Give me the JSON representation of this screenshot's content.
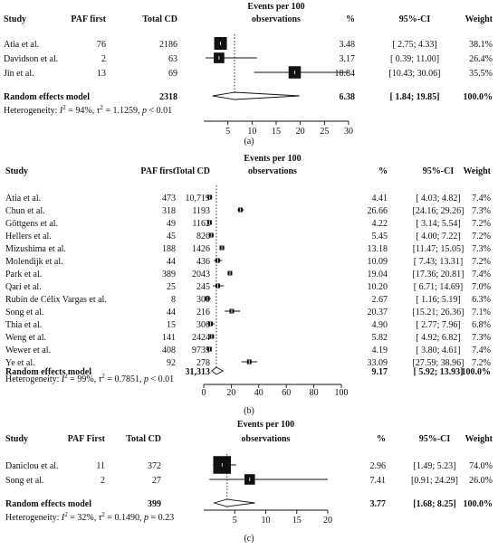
{
  "chart_data": [
    {
      "type": "forest",
      "panel_label": "(a)",
      "headers": {
        "study": "Study",
        "paf": "PAF first",
        "total": "Total CD",
        "events_line1": "Events per 100",
        "events_line2": "observations",
        "pct": "%",
        "ci": "95%-CI",
        "weight": "Weight"
      },
      "studies": [
        {
          "name": "Atia et al.",
          "paf": "76",
          "total": "2186",
          "est": 3.48,
          "lo": 2.75,
          "hi": 4.33,
          "pct": "3.48",
          "ci": "[ 2.75;  4.33]",
          "weight": "38.1%"
        },
        {
          "name": "Davidson et al.",
          "paf": "2",
          "total": "63",
          "est": 3.17,
          "lo": 0.39,
          "hi": 11.0,
          "pct": "3.17",
          "ci": "[ 0.39; 11.00]",
          "weight": "26.4%"
        },
        {
          "name": "Jin et al.",
          "paf": "13",
          "total": "69",
          "est": 18.84,
          "lo": 10.43,
          "hi": 30.06,
          "pct": "18.84",
          "ci": "[10.43; 30.06]",
          "weight": "35.5%"
        }
      ],
      "summary": {
        "name": "Random effects model",
        "total": "2318",
        "est": 6.38,
        "lo": 1.84,
        "hi": 19.85,
        "pct": "6.38",
        "ci": "[ 1.84; 19.85]",
        "weight": "100.0%"
      },
      "heterogeneity": {
        "prefix": "Heterogeneity: ",
        "I2": "94%",
        "tau2": "1.1259",
        "p": "< 0.01",
        "p_op": ""
      },
      "xaxis": {
        "ticks": [
          5,
          10,
          15,
          20,
          25,
          30
        ],
        "range": [
          0,
          30
        ]
      }
    },
    {
      "type": "forest",
      "panel_label": "(b)",
      "headers": {
        "study": "Study",
        "paf": "PAF first",
        "total": "Total CD",
        "events_line1": "Events per 100",
        "events_line2": "observations",
        "pct": "%",
        "ci": "95%-CI",
        "weight": "Weight"
      },
      "studies": [
        {
          "name": "Atia et al.",
          "paf": "473",
          "total": "10,719",
          "est": 4.41,
          "lo": 4.03,
          "hi": 4.82,
          "pct": "4.41",
          "ci": "[ 4.03;  4.82]",
          "weight": "7.4%"
        },
        {
          "name": "Chun et al.",
          "paf": "318",
          "total": "1193",
          "est": 26.66,
          "lo": 24.16,
          "hi": 29.26,
          "pct": "26.66",
          "ci": "[24.16; 29.26]",
          "weight": "7.3%"
        },
        {
          "name": "Göttgens et al.",
          "paf": "49",
          "total": "1162",
          "est": 4.22,
          "lo": 3.14,
          "hi": 5.54,
          "pct": "4.22",
          "ci": "[ 3.14;  5.54]",
          "weight": "7.2%"
        },
        {
          "name": "Hellers et al.",
          "paf": "45",
          "total": "826",
          "est": 5.45,
          "lo": 4.0,
          "hi": 7.22,
          "pct": "5.45",
          "ci": "[ 4.00;  7.22]",
          "weight": "7.2%"
        },
        {
          "name": "Mizushima et al.",
          "paf": "188",
          "total": "1426",
          "est": 13.18,
          "lo": 11.47,
          "hi": 15.05,
          "pct": "13.18",
          "ci": "[11.47; 15.05]",
          "weight": "7.3%"
        },
        {
          "name": "Molendijk et al.",
          "paf": "44",
          "total": "436",
          "est": 10.09,
          "lo": 7.43,
          "hi": 13.31,
          "pct": "10.09",
          "ci": "[ 7.43; 13.31]",
          "weight": "7.2%"
        },
        {
          "name": "Park et al.",
          "paf": "389",
          "total": "2043",
          "est": 19.04,
          "lo": 17.36,
          "hi": 20.81,
          "pct": "19.04",
          "ci": "[17.36; 20.81]",
          "weight": "7.4%"
        },
        {
          "name": "Qari et al.",
          "paf": "25",
          "total": "245",
          "est": 10.2,
          "lo": 6.71,
          "hi": 14.69,
          "pct": "10.20",
          "ci": "[ 6.71; 14.69]",
          "weight": "7.0%"
        },
        {
          "name": "Rubín de Célix Vargas et al.",
          "paf": "8",
          "total": "300",
          "est": 2.67,
          "lo": 1.16,
          "hi": 5.19,
          "pct": "2.67",
          "ci": "[ 1.16;  5.19]",
          "weight": "6.3%"
        },
        {
          "name": "Song et al.",
          "paf": "44",
          "total": "216",
          "est": 20.37,
          "lo": 15.21,
          "hi": 26.36,
          "pct": "20.37",
          "ci": "[15.21; 26.36]",
          "weight": "7.1%"
        },
        {
          "name": "Thia et al.",
          "paf": "15",
          "total": "306",
          "est": 4.9,
          "lo": 2.77,
          "hi": 7.96,
          "pct": "4.90",
          "ci": "[ 2.77;  7.96]",
          "weight": "6.8%"
        },
        {
          "name": "Weng et al.",
          "paf": "141",
          "total": "2424",
          "est": 5.82,
          "lo": 4.92,
          "hi": 6.82,
          "pct": "5.82",
          "ci": "[ 4.92;  6.82]",
          "weight": "7.3%"
        },
        {
          "name": "Wewer et al.",
          "paf": "408",
          "total": "9739",
          "est": 4.19,
          "lo": 3.8,
          "hi": 4.61,
          "pct": "4.19",
          "ci": "[ 3.80;  4.61]",
          "weight": "7.4%"
        },
        {
          "name": "Ye et al.",
          "paf": "92",
          "total": "278",
          "est": 33.09,
          "lo": 27.59,
          "hi": 38.96,
          "pct": "33.09",
          "ci": "[27.59; 38.96]",
          "weight": "7.2%"
        }
      ],
      "summary": {
        "name": "Random effects model",
        "total": "31,313",
        "est": 9.17,
        "lo": 5.92,
        "hi": 13.93,
        "pct": "9.17",
        "ci": "[ 5.92; 13.93]",
        "weight": "100.0%"
      },
      "heterogeneity": {
        "prefix": "Heterogeneity: ",
        "I2": "99%",
        "tau2": "0.7851",
        "p": "< 0.01",
        "p_op": ""
      },
      "xaxis": {
        "ticks": [
          0,
          20,
          40,
          60,
          80,
          100
        ],
        "range": [
          0,
          100
        ]
      }
    },
    {
      "type": "forest",
      "panel_label": "(c)",
      "headers": {
        "study": "Study",
        "paf": "PAF First",
        "total": "Total CD",
        "events_line1": "Events per 100",
        "events_line2": "observations",
        "pct": "%",
        "ci": "95%-CI",
        "weight": "Weight"
      },
      "studies": [
        {
          "name": "Daniclou et al.",
          "paf": "11",
          "total": "372",
          "est": 2.96,
          "lo": 1.49,
          "hi": 5.23,
          "pct": "2.96",
          "ci": "[1.49;  5.23]",
          "weight": "74.0%"
        },
        {
          "name": "Song et al.",
          "paf": "2",
          "total": "27",
          "est": 7.41,
          "lo": 0.91,
          "hi": 24.29,
          "pct": "7.41",
          "ci": "[0.91; 24.29]",
          "weight": "26.0%"
        }
      ],
      "summary": {
        "name": "Random effects model",
        "total": "399",
        "est": 3.77,
        "lo": 1.68,
        "hi": 8.25,
        "pct": "3.77",
        "ci": "[1.68;  8.25]",
        "weight": "100.0%"
      },
      "heterogeneity": {
        "prefix": "Heterogeneity: ",
        "I2": "32%",
        "tau2": "0.1490",
        "p": "0.23",
        "p_op": "= "
      },
      "xaxis": {
        "ticks": [
          5,
          10,
          15,
          20
        ],
        "range": [
          0,
          20
        ]
      }
    }
  ]
}
